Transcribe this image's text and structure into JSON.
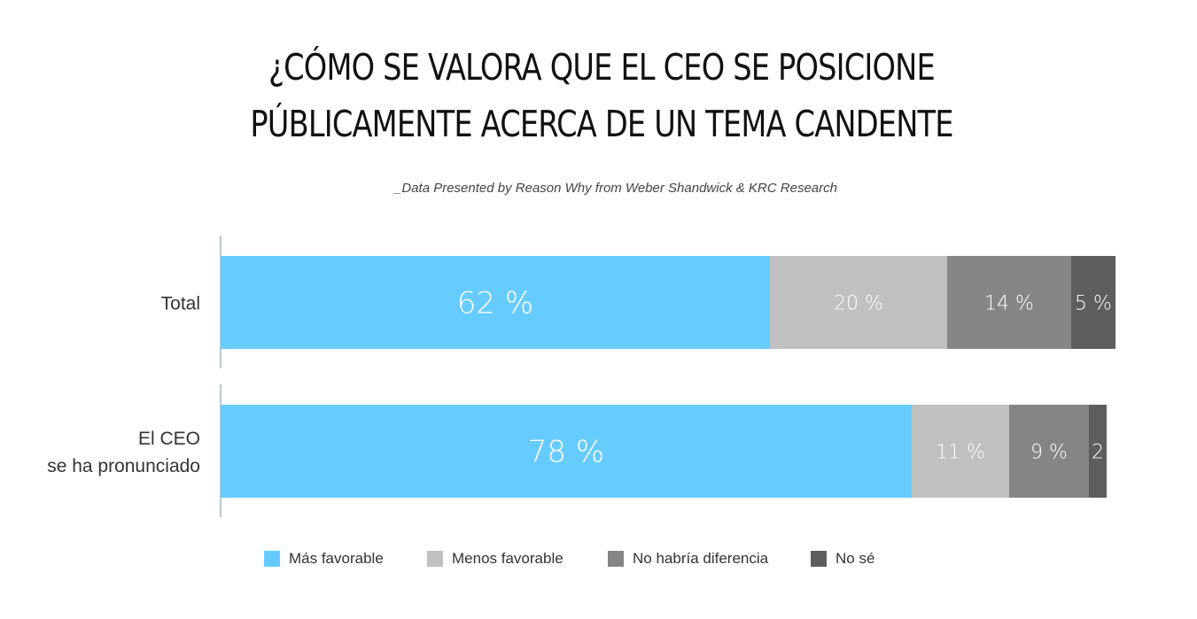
{
  "title": {
    "line1": "¿CÓMO SE VALORA QUE EL CEO SE POSICIONE",
    "line2": "PÚBLICAMENTE ACERCA DE UN TEMA CANDENTE"
  },
  "subtitle": "_Data Presented by Reason Why from Weber Shandwick & KRC Research",
  "chart_data": {
    "type": "bar",
    "orientation": "horizontal",
    "stacked": true,
    "categories": [
      [
        "Total"
      ],
      [
        "El CEO",
        "se ha pronunciado"
      ]
    ],
    "series": [
      {
        "name": "Más favorable",
        "color": "#66CCFF",
        "values": [
          62,
          78
        ],
        "labels": [
          "62 %",
          "78 %"
        ]
      },
      {
        "name": "Menos favorable",
        "color": "#C0C0C0",
        "values": [
          20,
          11
        ],
        "labels": [
          "20 %",
          "11 %"
        ]
      },
      {
        "name": "No habría diferencia",
        "color": "#858585",
        "values": [
          14,
          9
        ],
        "labels": [
          "14 %",
          "9 %"
        ]
      },
      {
        "name": "No sé",
        "color": "#5E5E5E",
        "values": [
          5,
          2
        ],
        "labels": [
          "5 %",
          "2"
        ]
      }
    ],
    "xlim": [
      0,
      100
    ],
    "grid": false,
    "legend_position": "bottom"
  }
}
